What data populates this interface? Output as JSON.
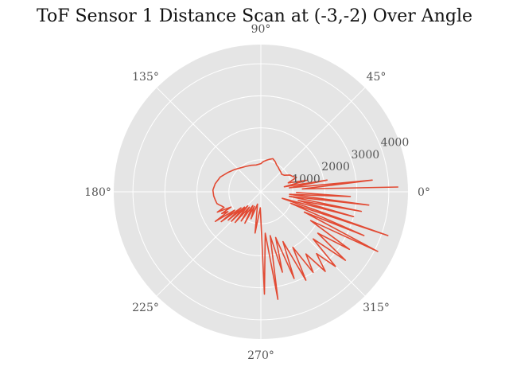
{
  "chart_data": {
    "type": "line",
    "projection": "polar",
    "title": "ToF Sensor 1 Distance Scan at (-3,-2) Over Angle",
    "angle_tick_labels": [
      "0°",
      "45°",
      "90°",
      "135°",
      "180°",
      "225°",
      "270°",
      "315°"
    ],
    "angle_ticks_deg": [
      0,
      45,
      90,
      135,
      180,
      225,
      270,
      315
    ],
    "radial_ticks": [
      1000,
      2000,
      3000,
      4000
    ],
    "radial_tick_labels": [
      "1000",
      "2000",
      "3000",
      "4000"
    ],
    "rlim": [
      0,
      4600
    ],
    "grid": true,
    "background": "#e5e5e5",
    "line_color": "#e24a33",
    "series": [
      {
        "points": [
          [
            2,
            4300
          ],
          [
            4,
            1300
          ],
          [
            6,
            3500
          ],
          [
            8,
            900
          ],
          [
            10,
            2100
          ],
          [
            12,
            750
          ],
          [
            14,
            1500
          ],
          [
            18,
            900
          ],
          [
            22,
            1200
          ],
          [
            26,
            1100
          ],
          [
            30,
            1050
          ],
          [
            35,
            900
          ],
          [
            40,
            850
          ],
          [
            45,
            880
          ],
          [
            50,
            900
          ],
          [
            55,
            940
          ],
          [
            60,
            980
          ],
          [
            65,
            1050
          ],
          [
            70,
            1100
          ],
          [
            75,
            1050
          ],
          [
            80,
            1000
          ],
          [
            85,
            950
          ],
          [
            90,
            880
          ],
          [
            100,
            850
          ],
          [
            110,
            880
          ],
          [
            120,
            920
          ],
          [
            130,
            980
          ],
          [
            140,
            1080
          ],
          [
            150,
            1200
          ],
          [
            160,
            1350
          ],
          [
            170,
            1450
          ],
          [
            178,
            1500
          ],
          [
            185,
            1480
          ],
          [
            190,
            1450
          ],
          [
            195,
            1420
          ],
          [
            198,
            1350
          ],
          [
            200,
            1300
          ],
          [
            203,
            1250
          ],
          [
            205,
            1500
          ],
          [
            207,
            1050
          ],
          [
            209,
            1400
          ],
          [
            211,
            1200
          ],
          [
            213,
            1700
          ],
          [
            215,
            1000
          ],
          [
            217,
            1550
          ],
          [
            219,
            800
          ],
          [
            221,
            1350
          ],
          [
            223,
            700
          ],
          [
            225,
            1300
          ],
          [
            227,
            600
          ],
          [
            230,
            1250
          ],
          [
            233,
            600
          ],
          [
            236,
            1100
          ],
          [
            240,
            500
          ],
          [
            243,
            1100
          ],
          [
            246,
            500
          ],
          [
            250,
            900
          ],
          [
            255,
            400
          ],
          [
            262,
            1300
          ],
          [
            268,
            500
          ],
          [
            272,
            3200
          ],
          [
            276,
            1300
          ],
          [
            279,
            3400
          ],
          [
            282,
            1400
          ],
          [
            285,
            2600
          ],
          [
            288,
            1500
          ],
          [
            291,
            2900
          ],
          [
            294,
            1700
          ],
          [
            297,
            3100
          ],
          [
            300,
            2000
          ],
          [
            303,
            3000
          ],
          [
            306,
            2400
          ],
          [
            309,
            3200
          ],
          [
            312,
            2600
          ],
          [
            315,
            3300
          ],
          [
            318,
            2200
          ],
          [
            321,
            3400
          ],
          [
            324,
            2200
          ],
          [
            327,
            3300
          ],
          [
            330,
            1800
          ],
          [
            333,
            4100
          ],
          [
            335,
            1500
          ],
          [
            337,
            3500
          ],
          [
            339,
            1000
          ],
          [
            341,
            4200
          ],
          [
            343,
            700
          ],
          [
            345,
            3000
          ],
          [
            347,
            1200
          ],
          [
            349,
            3200
          ],
          [
            351,
            900
          ],
          [
            353,
            3400
          ],
          [
            355,
            900
          ],
          [
            357,
            2800
          ],
          [
            359,
            1100
          ]
        ]
      }
    ]
  }
}
